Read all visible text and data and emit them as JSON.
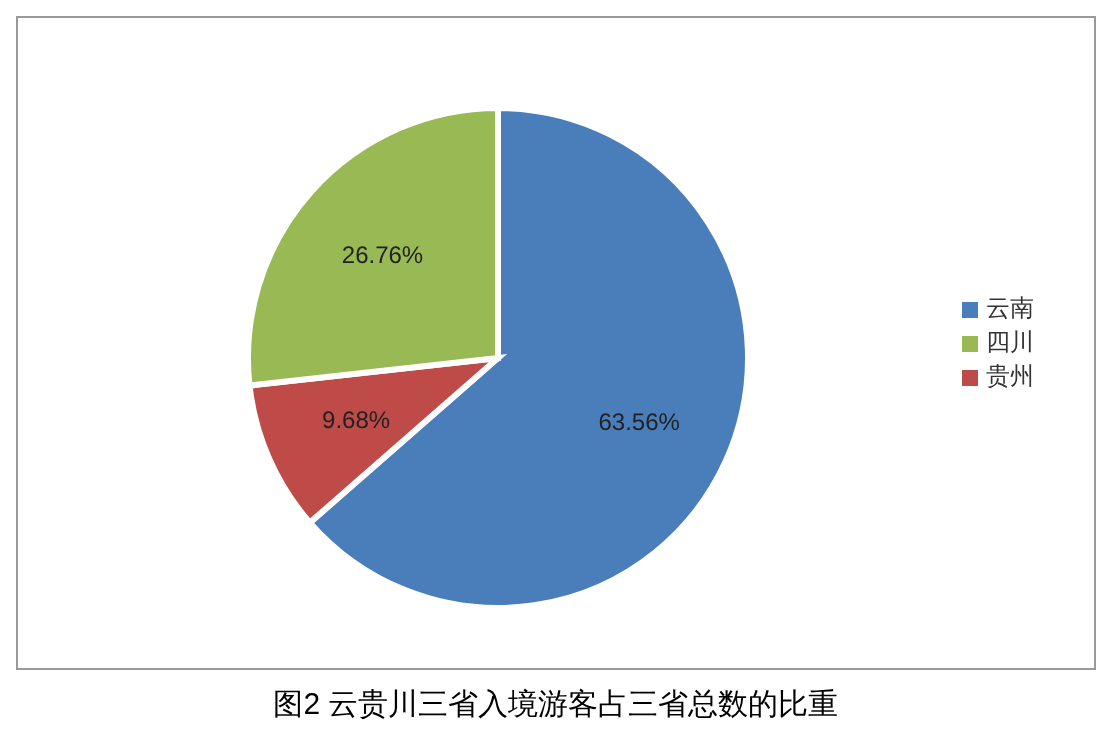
{
  "chart_data": {
    "type": "pie",
    "title": "图2  云贵川三省入境游客占三省总数的比重",
    "categories": [
      "云南",
      "贵州",
      "四川"
    ],
    "values": [
      63.56,
      9.68,
      26.76
    ],
    "value_labels": [
      "63.56%",
      "9.68%",
      "26.76%"
    ],
    "colors": [
      "#4a7ebb",
      "#be4b48",
      "#98b954"
    ],
    "legend": "right"
  }
}
